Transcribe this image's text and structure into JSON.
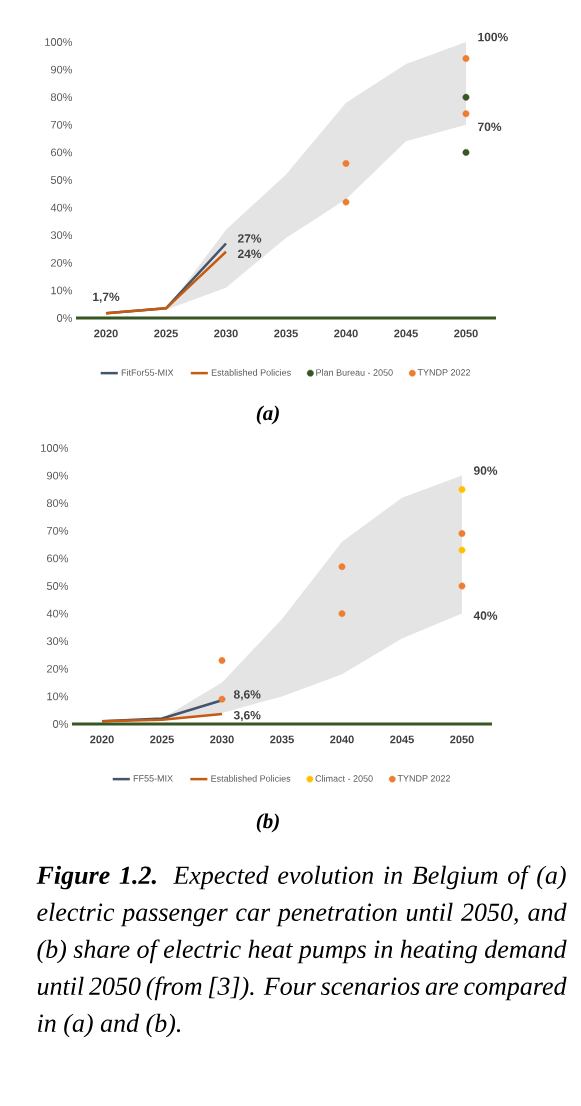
{
  "chart_data": [
    {
      "type": "line",
      "title": "(a)",
      "x": [
        2020,
        2025,
        2030,
        2035,
        2040,
        2045,
        2050
      ],
      "xlim": [
        2017.5,
        2052.5
      ],
      "xticks": [
        2020,
        2025,
        2030,
        2035,
        2040,
        2045,
        2050
      ],
      "ylim": [
        0,
        100
      ],
      "yticks": [
        {
          "value": 0,
          "label": "0%"
        },
        {
          "value": 10,
          "label": "10%"
        },
        {
          "value": 20,
          "label": "20%"
        },
        {
          "value": 30,
          "label": "30%"
        },
        {
          "value": 40,
          "label": "40%"
        },
        {
          "value": 50,
          "label": "50%"
        },
        {
          "value": 60,
          "label": "60%"
        },
        {
          "value": 70,
          "label": "70%"
        },
        {
          "value": 80,
          "label": "80%"
        },
        {
          "value": 90,
          "label": "90%"
        },
        {
          "value": 100,
          "label": "100%"
        }
      ],
      "marker": "none",
      "legend": "bottom",
      "series": [
        {
          "type": "area",
          "color": "#e4e4e4",
          "values": [
            null,
            null,
            null,
            null,
            null,
            null,
            null
          ],
          "lower": [
            null,
            3,
            11,
            29,
            43,
            64,
            70
          ],
          "upper": [
            null,
            3,
            32,
            52,
            78,
            92,
            100
          ]
        },
        {
          "name": "FitFor55-MIX",
          "color": "#44546a",
          "values": [
            1.7,
            3.5,
            27,
            null,
            null,
            null,
            null
          ]
        },
        {
          "name": "Established Policies",
          "color": "#c55a11",
          "values": [
            1.7,
            3.5,
            24,
            null,
            null,
            null,
            null
          ]
        },
        {
          "name": "Plan Bureau - 2050",
          "type": "scatter",
          "marker": "circle",
          "color": "#375623",
          "x": [
            2050,
            2050
          ],
          "values": [
            80,
            60
          ]
        },
        {
          "name": "TYNDP 2022",
          "type": "scatter",
          "marker": "circle",
          "color": "#ed7d31",
          "x": [
            2040,
            2040,
            2050,
            2050
          ],
          "values": [
            56,
            42,
            94,
            74
          ]
        }
      ],
      "annotations": [
        {
          "text": "1,7%",
          "x": 2020,
          "y": 1.7
        },
        {
          "text": "27%",
          "x": 2030,
          "y": 27
        },
        {
          "text": "24%",
          "x": 2030,
          "y": 24
        },
        {
          "text": "100%",
          "x": 2050,
          "y": 100
        },
        {
          "text": "70%",
          "x": 2050,
          "y": 70
        }
      ]
    },
    {
      "type": "line",
      "title": "(b)",
      "x": [
        2020,
        2025,
        2030,
        2035,
        2040,
        2045,
        2050
      ],
      "xlim": [
        2017.5,
        2052.5
      ],
      "xticks": [
        2020,
        2025,
        2030,
        2035,
        2040,
        2045,
        2050
      ],
      "ylim": [
        0,
        100
      ],
      "yticks": [
        {
          "value": 0,
          "label": "0%"
        },
        {
          "value": 10,
          "label": "10%"
        },
        {
          "value": 20,
          "label": "20%"
        },
        {
          "value": 30,
          "label": "30%"
        },
        {
          "value": 40,
          "label": "40%"
        },
        {
          "value": 50,
          "label": "50%"
        },
        {
          "value": 60,
          "label": "60%"
        },
        {
          "value": 70,
          "label": "70%"
        },
        {
          "value": 80,
          "label": "80%"
        },
        {
          "value": 90,
          "label": "90%"
        },
        {
          "value": 100,
          "label": "100%"
        }
      ],
      "marker": "none",
      "legend": "bottom",
      "series": [
        {
          "type": "area",
          "color": "#e4e4e4",
          "values": [
            null,
            null,
            null,
            null,
            null,
            null,
            null
          ],
          "lower": [
            null,
            2,
            4,
            10,
            18,
            31,
            40
          ],
          "upper": [
            null,
            2,
            15,
            38,
            66,
            82,
            90
          ]
        },
        {
          "name": "FF55-MIX",
          "color": "#44546a",
          "values": [
            1,
            2,
            8.6,
            null,
            null,
            null,
            null
          ]
        },
        {
          "name": "Established Policies",
          "color": "#c55a11",
          "values": [
            1,
            1.5,
            3.6,
            null,
            null,
            null,
            null
          ]
        },
        {
          "name": "Climact - 2050",
          "type": "scatter",
          "marker": "circle",
          "color": "#ffc000",
          "x": [
            2050,
            2050
          ],
          "values": [
            85,
            63
          ]
        },
        {
          "name": "TYNDP 2022",
          "type": "scatter",
          "marker": "circle",
          "color": "#ed7d31",
          "x": [
            2030,
            2030,
            2040,
            2040,
            2050,
            2050
          ],
          "values": [
            23,
            9,
            57,
            40,
            69,
            50
          ]
        }
      ],
      "annotations": [
        {
          "text": "8,6%",
          "x": 2030,
          "y": 8.6
        },
        {
          "text": "3,6%",
          "x": 2030,
          "y": 3.6
        },
        {
          "text": "90%",
          "x": 2050,
          "y": 90
        },
        {
          "text": "40%",
          "x": 2050,
          "y": 40
        },
        "**Figure 1.2.** Expected evolution in Belgium of (a) electric passenger car penetration until 2050, and (b) share of electric heat pumps in heating demand until 2050 (from [3]). Four scenarios are compared in (a) and (b)."
      ]
    }
  ]
}
